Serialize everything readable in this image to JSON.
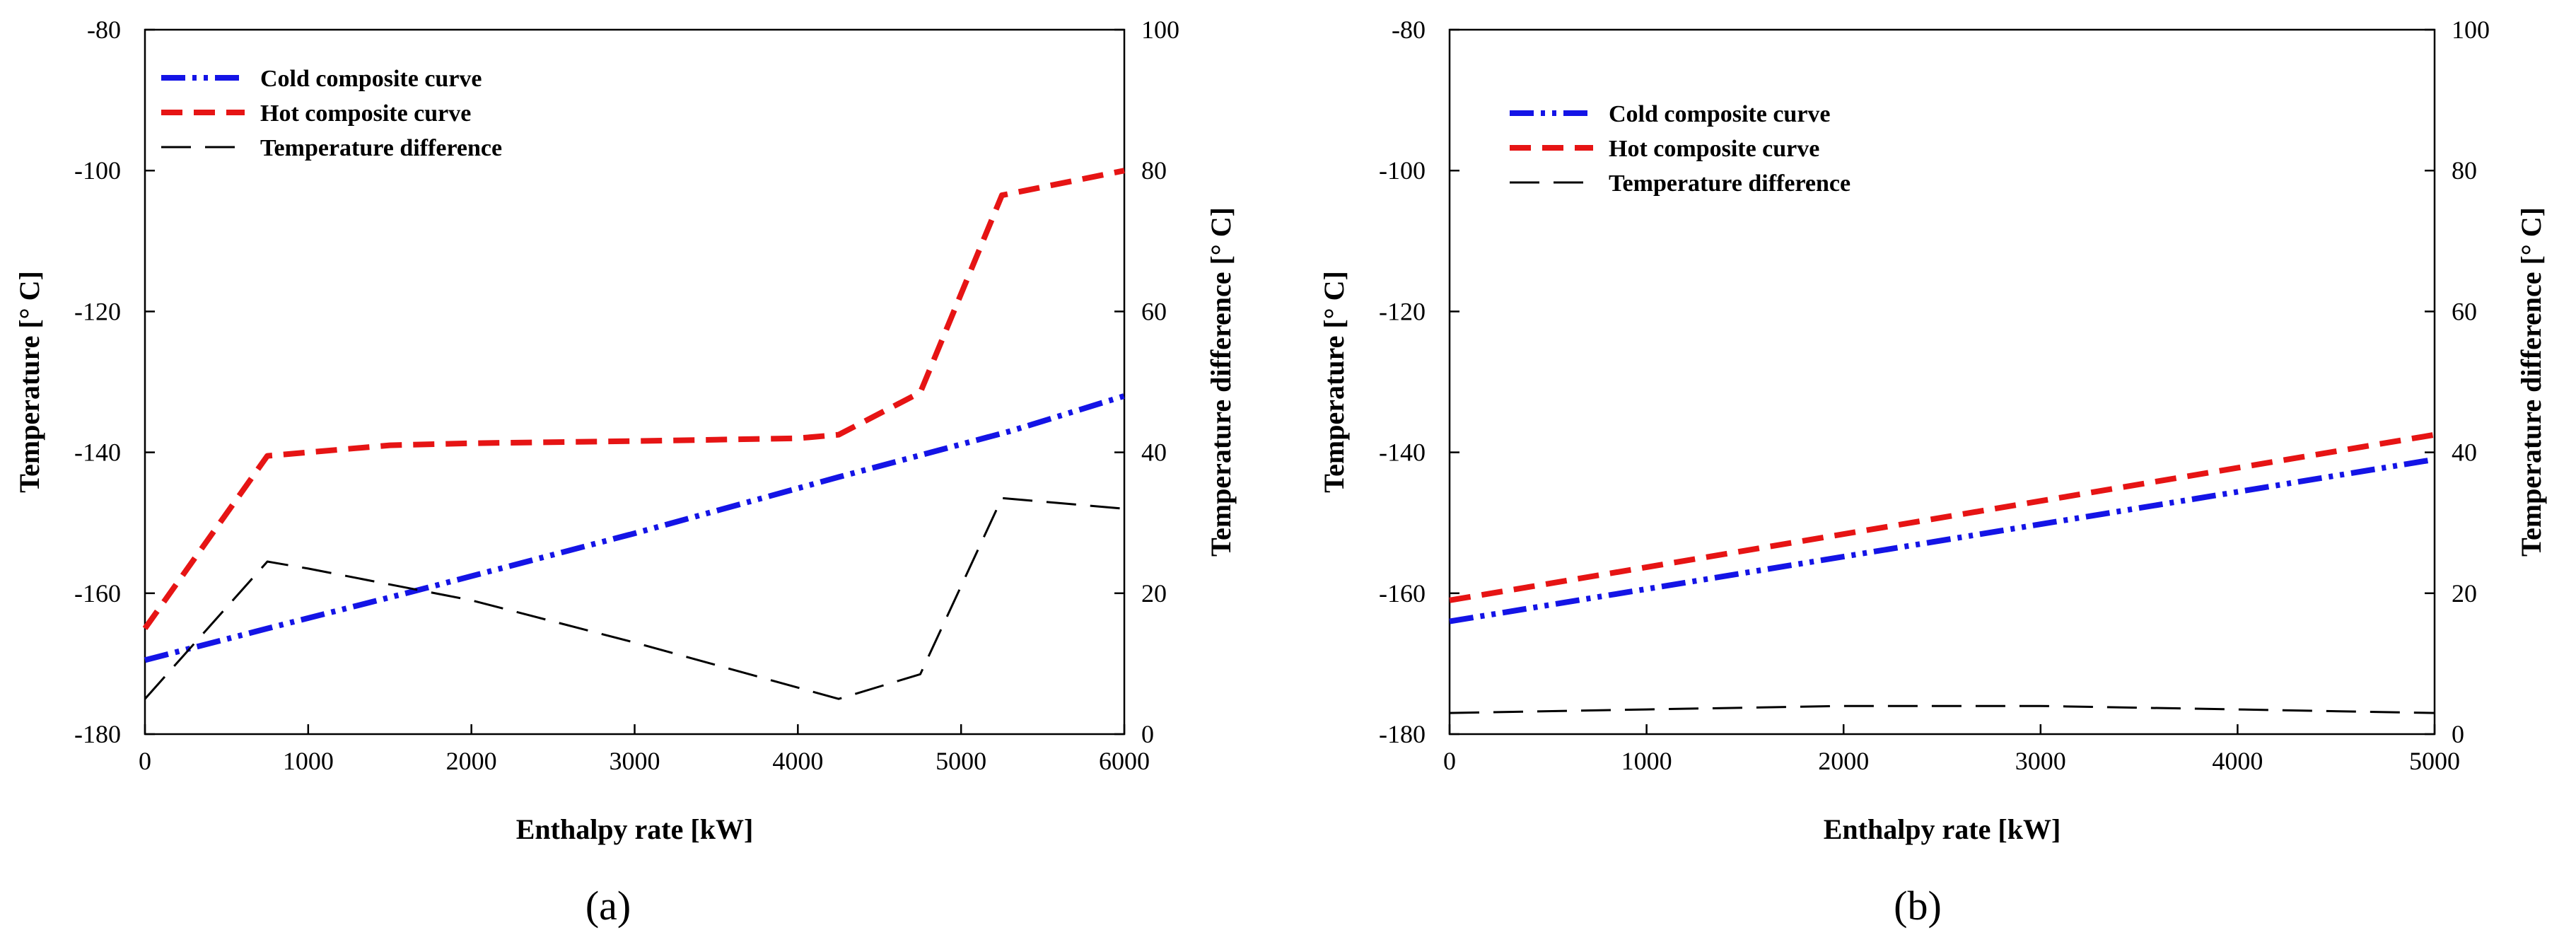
{
  "chart_data": [
    {
      "type": "line",
      "panel_label": "(a)",
      "xlabel": "Enthalpy rate [kW]",
      "ylabel_left": "Temperature [° C]",
      "ylabel_right": "Temperature difference [° C]",
      "xlim": [
        0,
        6000
      ],
      "ylim_left": [
        -180,
        -80
      ],
      "ylim_right": [
        0,
        100
      ],
      "x_ticks": [
        "0",
        "1000",
        "2000",
        "3000",
        "4000",
        "5000",
        "6000"
      ],
      "y_left_ticks": [
        "-80",
        "-100",
        "-120",
        "-140",
        "-160",
        "-180"
      ],
      "y_right_ticks": [
        "100",
        "80",
        "60",
        "40",
        "20",
        "0"
      ],
      "legend_position": "top-left",
      "series": [
        {
          "name": "Cold composite curve",
          "axis": "left",
          "color": "#1414e6",
          "style": "dash-dot-dot",
          "x": [
            0,
            750,
            1600,
            3000,
            4250,
            5300,
            6000
          ],
          "y": [
            -169.5,
            -165,
            -160,
            -151.5,
            -143.5,
            -137,
            -132
          ]
        },
        {
          "name": "Hot composite curve",
          "axis": "left",
          "color": "#e61414",
          "style": "dashed",
          "x": [
            0,
            750,
            1500,
            2000,
            3000,
            4000,
            4250,
            4750,
            5250,
            6000
          ],
          "y": [
            -165,
            -140.5,
            -139,
            -138.7,
            -138.4,
            -138,
            -137.5,
            -131.5,
            -103.5,
            -100
          ]
        },
        {
          "name": "Temperature difference",
          "axis": "right",
          "color": "#000000",
          "style": "long-dash",
          "x": [
            0,
            750,
            1000,
            2000,
            3000,
            4250,
            4750,
            5250,
            6000
          ],
          "y": [
            5,
            24.5,
            23.5,
            19,
            13,
            5,
            8.5,
            33.5,
            32
          ]
        }
      ]
    },
    {
      "type": "line",
      "panel_label": "(b)",
      "xlabel": "Enthalpy rate [kW]",
      "ylabel_left": "Temperature [° C]",
      "ylabel_right": "Temperature difference [° C]",
      "xlim": [
        0,
        5000
      ],
      "ylim_left": [
        -180,
        -80
      ],
      "ylim_right": [
        0,
        100
      ],
      "x_ticks": [
        "0",
        "1000",
        "2000",
        "3000",
        "4000",
        "5000"
      ],
      "y_left_ticks": [
        "-80",
        "-100",
        "-120",
        "-140",
        "-160",
        "-180"
      ],
      "y_right_ticks": [
        "100",
        "80",
        "60",
        "40",
        "20",
        "0"
      ],
      "legend_position": "top-left",
      "series": [
        {
          "name": "Cold composite curve",
          "axis": "left",
          "color": "#1414e6",
          "style": "dash-dot-dot",
          "x": [
            0,
            5000
          ],
          "y": [
            -164,
            -141
          ]
        },
        {
          "name": "Hot composite curve",
          "axis": "left",
          "color": "#e61414",
          "style": "dashed",
          "x": [
            0,
            5000
          ],
          "y": [
            -161,
            -137.5
          ]
        },
        {
          "name": "Temperature difference",
          "axis": "right",
          "color": "#000000",
          "style": "long-dash",
          "x": [
            0,
            1000,
            2000,
            3000,
            4000,
            5000
          ],
          "y": [
            3,
            3.5,
            4,
            4,
            3.5,
            3
          ]
        }
      ]
    }
  ]
}
